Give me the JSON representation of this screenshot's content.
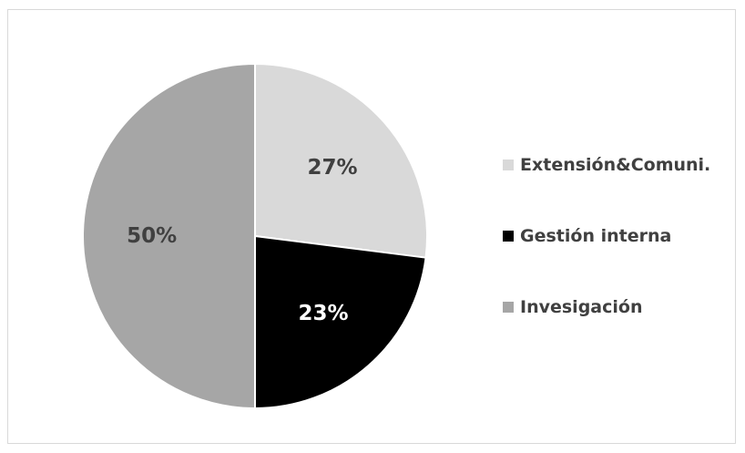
{
  "chart_data": {
    "type": "pie",
    "title": "",
    "start_angle_deg": 0,
    "direction": "clockwise",
    "legend_position": "right",
    "slices": [
      {
        "name": "Extensión&Comuni.",
        "value": 27,
        "label": "27%",
        "color": "#d9d9d9",
        "label_color": "#404040"
      },
      {
        "name": "Gestión interna",
        "value": 23,
        "label": "23%",
        "color": "#000000",
        "label_color": "#ffffff"
      },
      {
        "name": "Invesigación",
        "value": 50,
        "label": "50%",
        "color": "#a6a6a6",
        "label_color": "#404040"
      }
    ]
  }
}
